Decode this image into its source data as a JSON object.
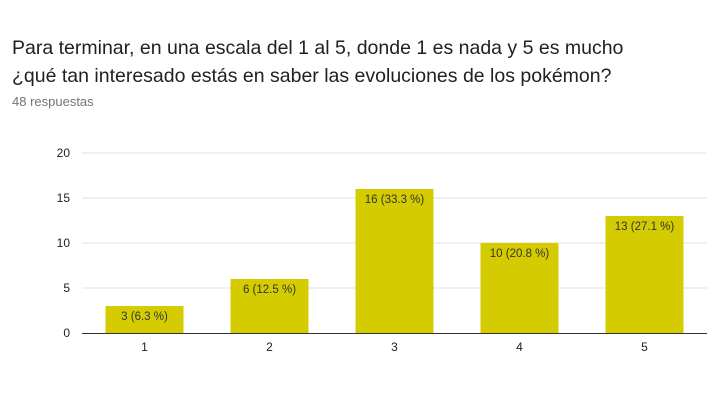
{
  "question": {
    "title_line1": "Para terminar, en una escala del 1 al 5, donde 1 es nada y 5 es mucho",
    "title_line2": "¿qué tan interesado estás en saber las evoluciones de los pokémon?",
    "response_count": "48 respuestas"
  },
  "colors": {
    "bar": "#d4cc00",
    "grid": "#e0e0e0",
    "axis": "#333333",
    "tick_text": "#222222",
    "label_text": "#333333"
  },
  "chart_data": {
    "type": "bar",
    "categories": [
      "1",
      "2",
      "3",
      "4",
      "5"
    ],
    "values": [
      3,
      6,
      16,
      10,
      13
    ],
    "data_labels": [
      "3 (6.3 %)",
      "6 (12.5 %)",
      "16 (33.3 %)",
      "10 (20.8 %)",
      "13 (27.1 %)"
    ],
    "title": "",
    "xlabel": "",
    "ylabel": "",
    "ylim": [
      0,
      20
    ],
    "yticks": [
      0,
      5,
      10,
      15,
      20
    ],
    "grid": true,
    "legend": "none"
  }
}
